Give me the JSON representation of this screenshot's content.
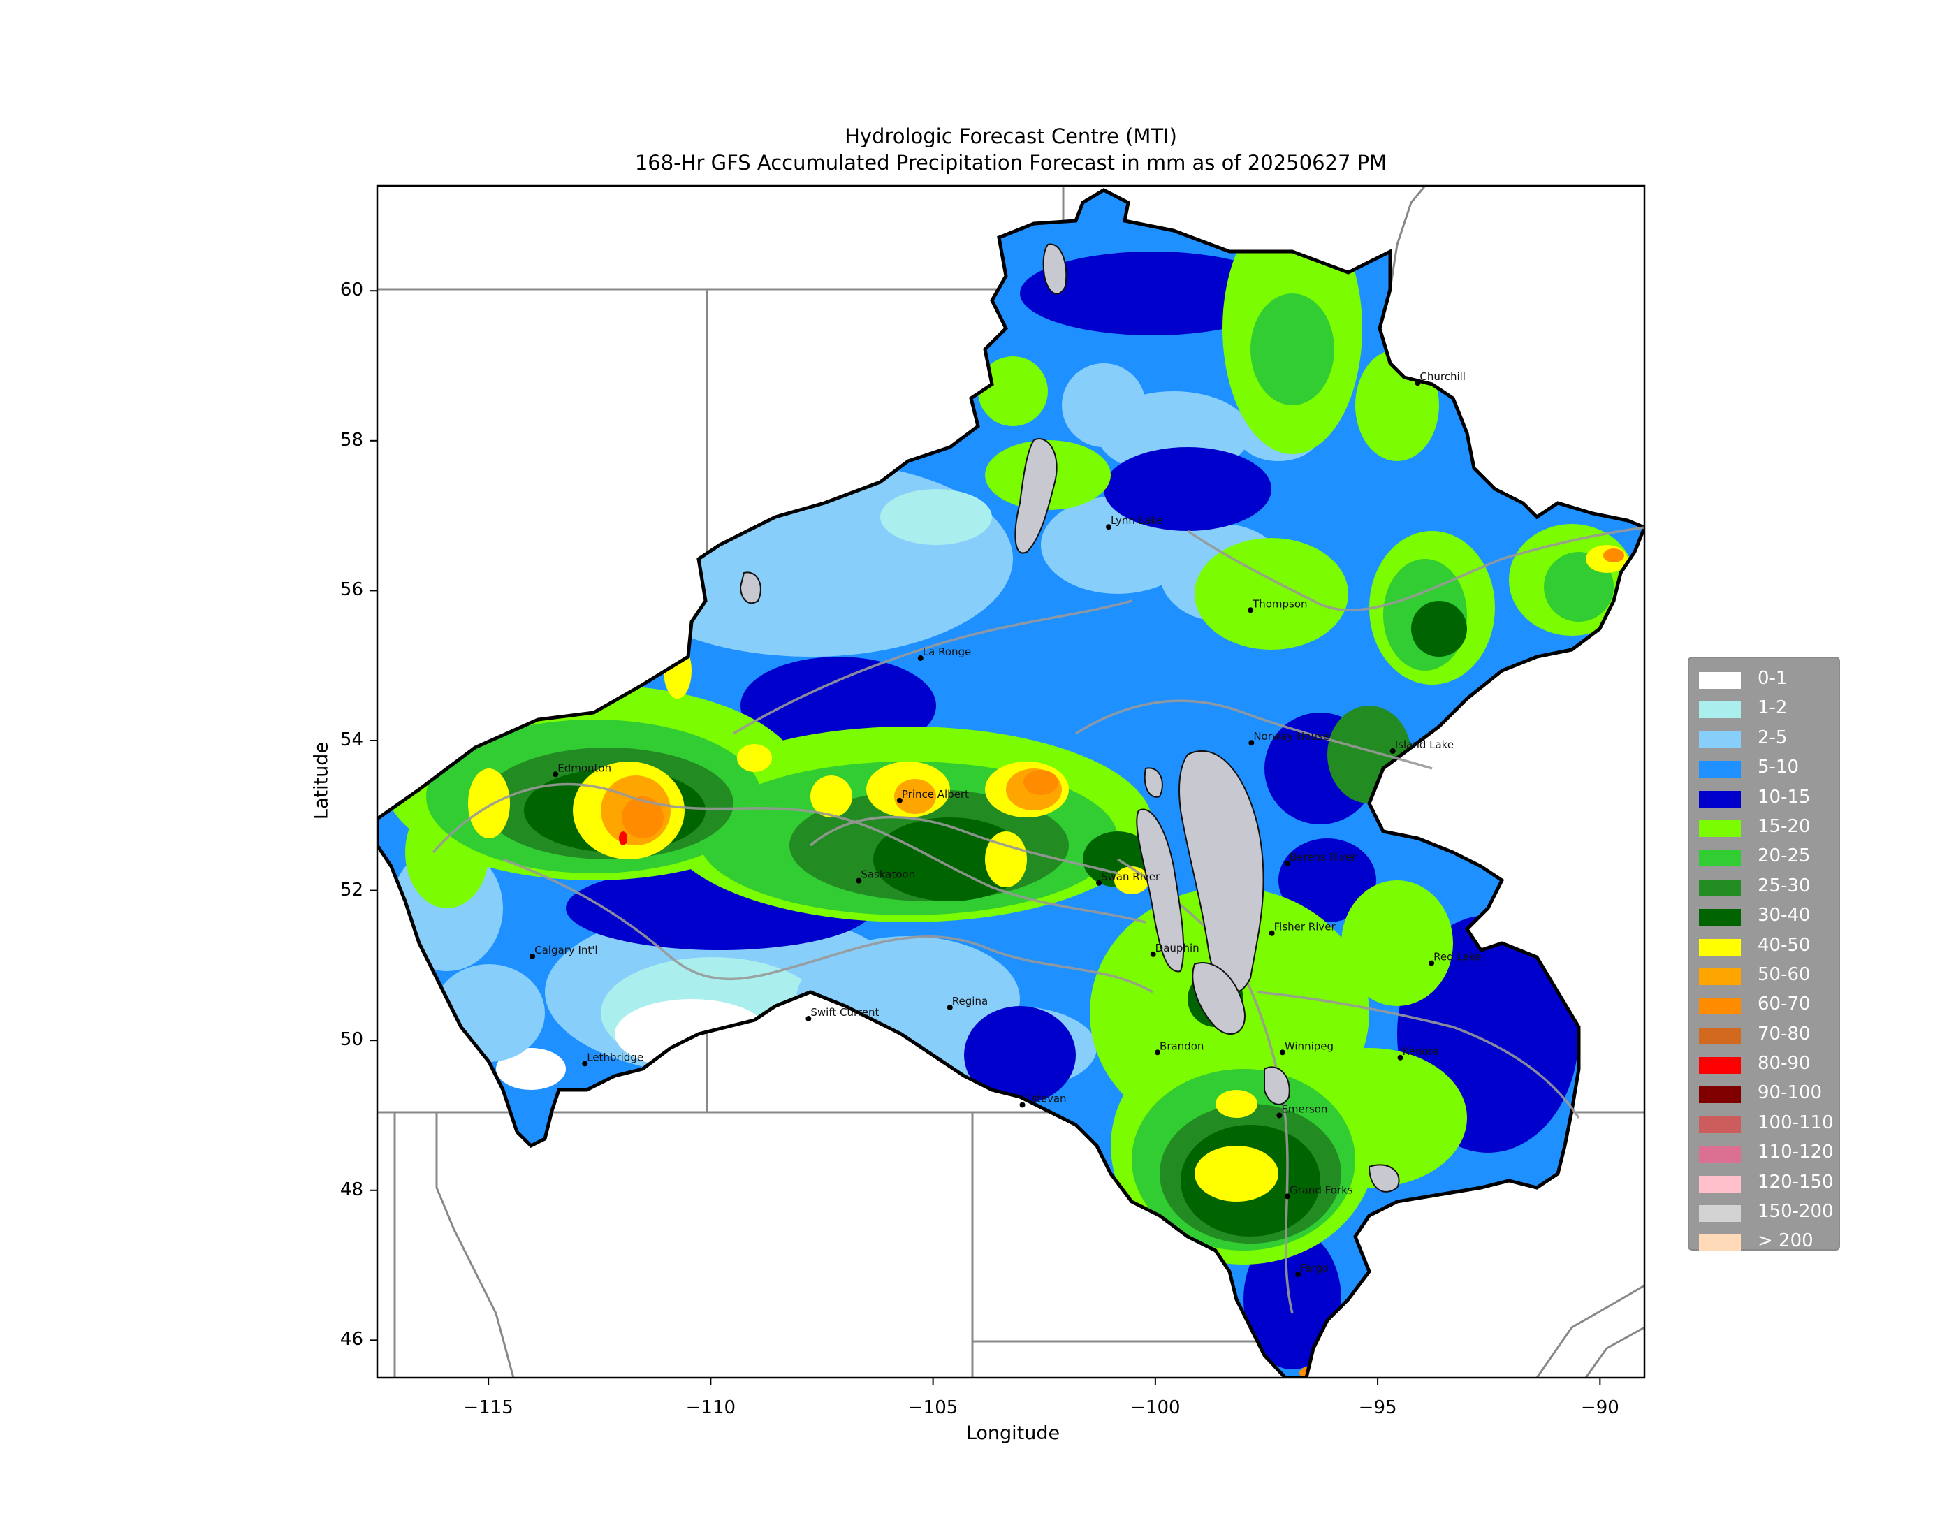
{
  "title": "Hydrologic Forecast Centre (MTI)",
  "subtitle": "168-Hr GFS Accumulated Precipitation Forecast in mm as of 20250627 PM",
  "xlabel": "Longitude",
  "ylabel": "Latitude",
  "map_extent": {
    "lon": [
      -117.5,
      -89.0
    ],
    "lat": [
      45.5,
      61.4
    ]
  },
  "ticks": {
    "x": [
      {
        "value": -115,
        "label": "−115"
      },
      {
        "value": -110,
        "label": "−110"
      },
      {
        "value": -105,
        "label": "−105"
      },
      {
        "value": -100,
        "label": "−100"
      },
      {
        "value": -95,
        "label": "−95"
      },
      {
        "value": -90,
        "label": "−90"
      }
    ],
    "y": [
      {
        "value": 60,
        "label": "60"
      },
      {
        "value": 58,
        "label": "58"
      },
      {
        "value": 56,
        "label": "56"
      },
      {
        "value": 54,
        "label": "54"
      },
      {
        "value": 52,
        "label": "52"
      },
      {
        "value": 50,
        "label": "50"
      },
      {
        "value": 48,
        "label": "48"
      },
      {
        "value": 46,
        "label": "46"
      }
    ]
  },
  "legend": [
    {
      "label": "0-1",
      "color": "#ffffff"
    },
    {
      "label": "1-2",
      "color": "#aaeeee"
    },
    {
      "label": "2-5",
      "color": "#87cefa"
    },
    {
      "label": "5-10",
      "color": "#1e90ff"
    },
    {
      "label": "10-15",
      "color": "#0000cd"
    },
    {
      "label": "15-20",
      "color": "#7cfc00"
    },
    {
      "label": "20-25",
      "color": "#32cd32"
    },
    {
      "label": "25-30",
      "color": "#228b22"
    },
    {
      "label": "30-40",
      "color": "#006400"
    },
    {
      "label": "40-50",
      "color": "#ffff00"
    },
    {
      "label": "50-60",
      "color": "#ffa500"
    },
    {
      "label": "60-70",
      "color": "#ff8c00"
    },
    {
      "label": "70-80",
      "color": "#d2691e"
    },
    {
      "label": "80-90",
      "color": "#ff0000"
    },
    {
      "label": "90-100",
      "color": "#800000"
    },
    {
      "label": "100-110",
      "color": "#cd5c5c"
    },
    {
      "label": "110-120",
      "color": "#db7093"
    },
    {
      "label": "120-150",
      "color": "#ffc0cb"
    },
    {
      "label": "150-200",
      "color": "#d3d3d3"
    },
    {
      "label": "> 200",
      "color": "#ffdab9"
    }
  ],
  "cities": [
    {
      "name": "Churchill",
      "lon": -94.1,
      "lat": 58.77
    },
    {
      "name": "Lynn Lake",
      "lon": -101.05,
      "lat": 56.85
    },
    {
      "name": "Thompson",
      "lon": -97.86,
      "lat": 55.74
    },
    {
      "name": "La Ronge",
      "lon": -105.28,
      "lat": 55.1
    },
    {
      "name": "Norway House",
      "lon": -97.84,
      "lat": 53.97
    },
    {
      "name": "Island Lake",
      "lon": -94.66,
      "lat": 53.86
    },
    {
      "name": "Edmonton",
      "lon": -113.49,
      "lat": 53.55
    },
    {
      "name": "Prince Albert",
      "lon": -105.75,
      "lat": 53.2
    },
    {
      "name": "Saskatoon",
      "lon": -106.67,
      "lat": 52.13
    },
    {
      "name": "Swan River",
      "lon": -101.27,
      "lat": 52.1
    },
    {
      "name": "Berens River",
      "lon": -97.03,
      "lat": 52.36
    },
    {
      "name": "Calgary Int'l",
      "lon": -114.01,
      "lat": 51.12
    },
    {
      "name": "Dauphin",
      "lon": -100.05,
      "lat": 51.15
    },
    {
      "name": "Fisher River",
      "lon": -97.38,
      "lat": 51.43
    },
    {
      "name": "Red Lake",
      "lon": -93.79,
      "lat": 51.03
    },
    {
      "name": "Swift Current",
      "lon": -107.8,
      "lat": 50.29
    },
    {
      "name": "Regina",
      "lon": -104.62,
      "lat": 50.44
    },
    {
      "name": "Brandon",
      "lon": -99.95,
      "lat": 49.84
    },
    {
      "name": "Winnipeg",
      "lon": -97.14,
      "lat": 49.84
    },
    {
      "name": "Kenora",
      "lon": -94.49,
      "lat": 49.77
    },
    {
      "name": "Lethbridge",
      "lon": -112.83,
      "lat": 49.69
    },
    {
      "name": "Estevan",
      "lon": -102.99,
      "lat": 49.14
    },
    {
      "name": "Emerson",
      "lon": -97.21,
      "lat": 49.0
    },
    {
      "name": "Grand Forks",
      "lon": -97.03,
      "lat": 47.92
    },
    {
      "name": "Fargo",
      "lon": -96.79,
      "lat": 46.88
    }
  ]
}
